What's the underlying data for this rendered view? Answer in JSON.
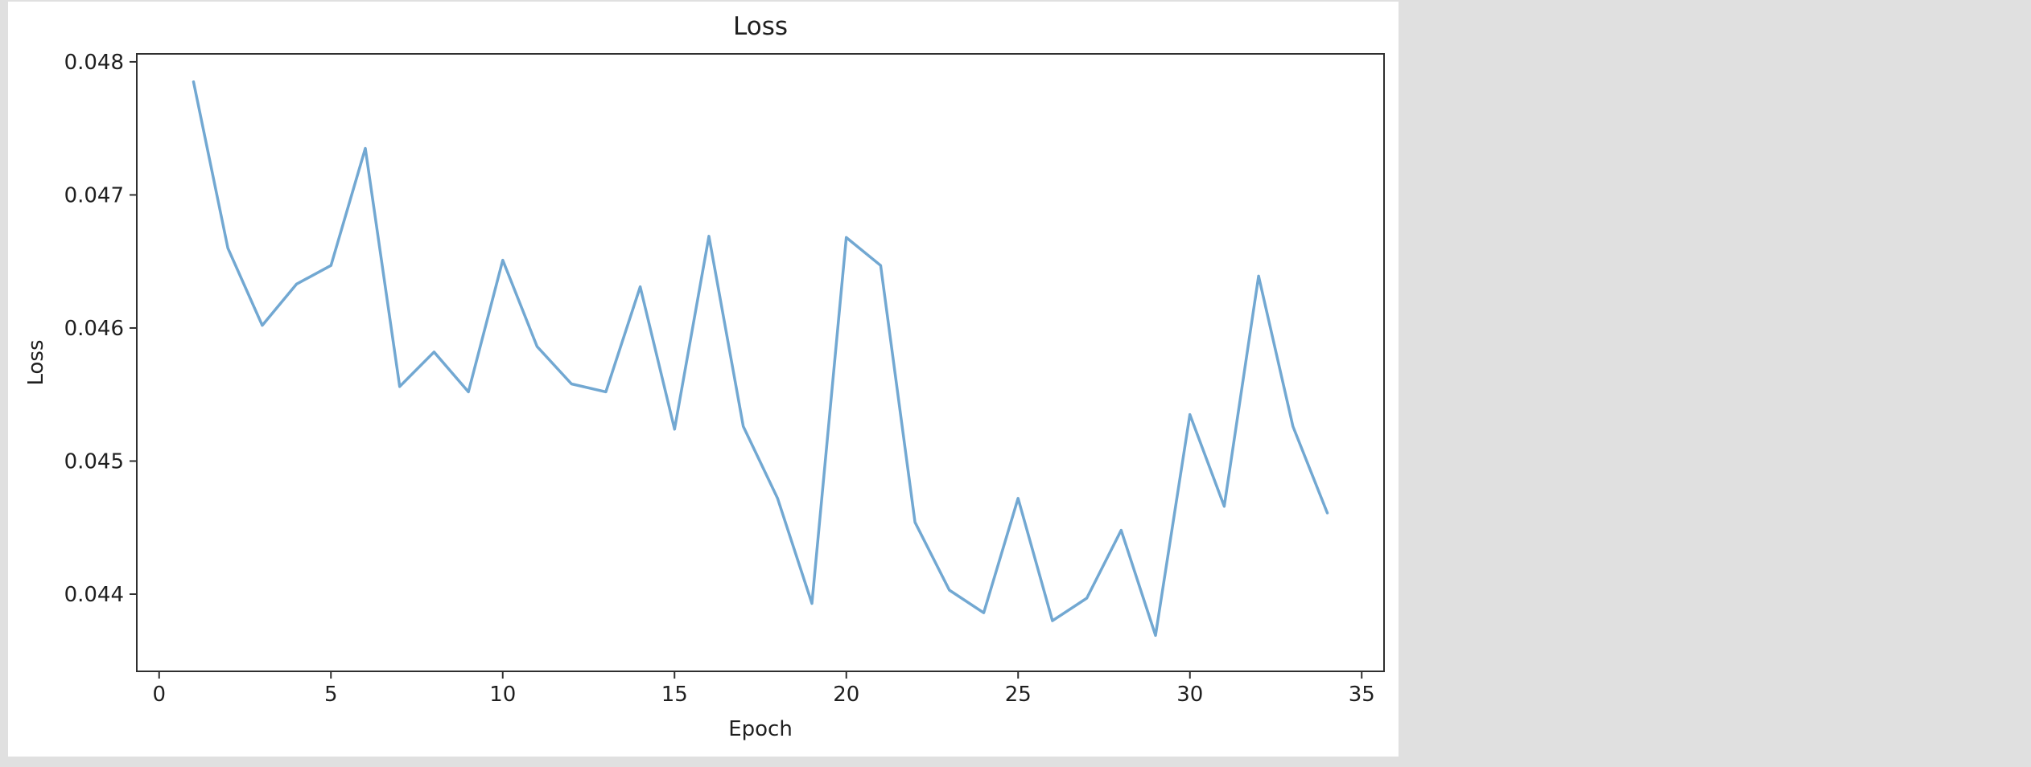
{
  "window": {
    "background_color": "#e0e0e0",
    "figure_background_color": "#ffffff"
  },
  "style": {
    "axis_color": "#2f2f2f",
    "text_color": "#1f1f1f",
    "line_width": 3.5
  },
  "chart_data": {
    "type": "line",
    "title": "Loss",
    "xlabel": "Epoch",
    "ylabel": "Loss",
    "grid": false,
    "legend": "none",
    "xlim": [
      -0.65,
      35.65
    ],
    "ylim": [
      0.04342,
      0.04806
    ],
    "xticks": [
      0,
      5,
      10,
      15,
      20,
      25,
      30,
      35
    ],
    "xtick_labels": [
      "0",
      "5",
      "10",
      "15",
      "20",
      "25",
      "30",
      "35"
    ],
    "yticks": [
      0.044,
      0.045,
      0.046,
      0.047,
      0.048
    ],
    "ytick_labels": [
      "0.044",
      "0.045",
      "0.046",
      "0.047",
      "0.048"
    ],
    "x": [
      1,
      2,
      3,
      4,
      5,
      6,
      7,
      8,
      9,
      10,
      11,
      12,
      13,
      14,
      15,
      16,
      17,
      18,
      19,
      20,
      21,
      22,
      23,
      24,
      25,
      26,
      27,
      28,
      29,
      30,
      31,
      32,
      33,
      34
    ],
    "series": [
      {
        "name": "loss",
        "color": "#72a8d2",
        "values": [
          0.04785,
          0.0466,
          0.04602,
          0.04633,
          0.04647,
          0.04735,
          0.04556,
          0.04582,
          0.04552,
          0.04651,
          0.04586,
          0.04558,
          0.04552,
          0.04631,
          0.04524,
          0.04669,
          0.04526,
          0.04472,
          0.04393,
          0.04668,
          0.04647,
          0.04454,
          0.04403,
          0.04386,
          0.04472,
          0.0438,
          0.04397,
          0.04448,
          0.04369,
          0.04535,
          0.04466,
          0.04639,
          0.04526,
          0.04461
        ]
      }
    ]
  }
}
